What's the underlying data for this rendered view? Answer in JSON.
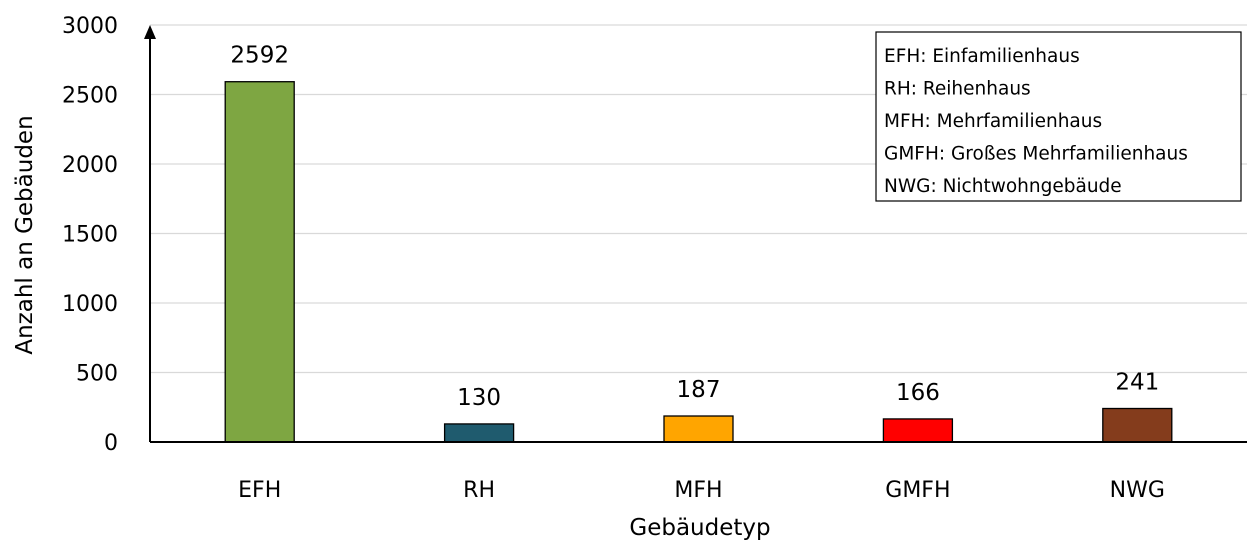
{
  "chart_data": {
    "type": "bar",
    "categories": [
      "EFH",
      "RH",
      "MFH",
      "GMFH",
      "NWG"
    ],
    "values": [
      2592,
      130,
      187,
      166,
      241
    ],
    "data_labels": [
      "2592",
      "130",
      "187",
      "166",
      "241"
    ],
    "colors": [
      "#7ea642",
      "#1f5b6e",
      "#ffa500",
      "#ff0000",
      "#843c1c"
    ],
    "title": "",
    "xlabel": "Gebäudetyp",
    "ylabel": "Anzahl an Gebäuden",
    "ylim": [
      0,
      3000
    ],
    "yticks": [
      "0",
      "500",
      "1000",
      "1500",
      "2000",
      "2500",
      "3000"
    ],
    "grid": true,
    "legend_placement": "top-right",
    "legend_lines": [
      "EFH: Einfamilienhaus",
      "RH: Reihenhaus",
      "MFH: Mehrfamilienhaus",
      "GMFH: Großes Mehrfamilienhaus",
      "NWG: Nichtwohngebäude"
    ]
  }
}
